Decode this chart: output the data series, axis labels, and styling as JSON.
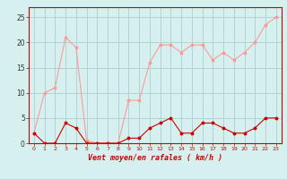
{
  "x": [
    0,
    1,
    2,
    3,
    4,
    5,
    6,
    7,
    8,
    9,
    10,
    11,
    12,
    13,
    14,
    15,
    16,
    17,
    18,
    19,
    20,
    21,
    22,
    23
  ],
  "vent_moyen": [
    2,
    0,
    0,
    4,
    3,
    0,
    0,
    0,
    0,
    1,
    1,
    3,
    4,
    5,
    2,
    2,
    4,
    4,
    3,
    2,
    2,
    3,
    5,
    5
  ],
  "rafales": [
    2,
    10,
    11,
    21,
    19,
    0.5,
    0,
    0,
    0,
    8.5,
    8.5,
    16,
    19.5,
    19.5,
    18,
    19.5,
    19.5,
    16.5,
    18,
    16.5,
    18,
    20,
    23.5,
    25
  ],
  "xlim": [
    -0.5,
    23.5
  ],
  "ylim": [
    0,
    27
  ],
  "yticks": [
    0,
    5,
    10,
    15,
    20,
    25
  ],
  "xticks": [
    0,
    1,
    2,
    3,
    4,
    5,
    6,
    7,
    8,
    9,
    10,
    11,
    12,
    13,
    14,
    15,
    16,
    17,
    18,
    19,
    20,
    21,
    22,
    23
  ],
  "xlabel": "Vent moyen/en rafales ( km/h )",
  "bg_color": "#d6f0f0",
  "grid_color": "#aacece",
  "line_color_moyen": "#cc0000",
  "line_color_rafales": "#ff9999"
}
